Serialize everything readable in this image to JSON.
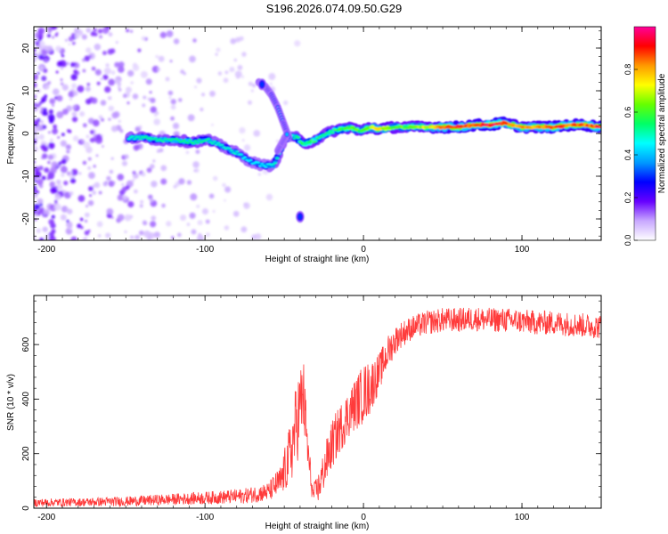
{
  "title": "S196.2026.074.09.50.G29",
  "chart_data": [
    {
      "type": "heatmap",
      "xlabel": "Height of straight line (km)",
      "ylabel": "Frequency (Hz)",
      "xlim": [
        -208,
        150
      ],
      "ylim": [
        -25,
        25
      ],
      "xticks": [
        -200,
        -100,
        0,
        100
      ],
      "yticks": [
        -20,
        -10,
        0,
        10,
        20
      ],
      "xtick_labels": [
        "-200",
        "-100",
        "0",
        "100"
      ],
      "ytick_labels": [
        "-20",
        "-10",
        "0",
        "10",
        "20"
      ],
      "colorbar": {
        "label": "Normalized spectral amplitude",
        "range": [
          0,
          1
        ],
        "ticks": [
          0.0,
          0.2,
          0.4,
          0.6,
          0.8
        ],
        "tick_labels": [
          "0.0",
          "0.2",
          "0.4",
          "0.6",
          "0.8"
        ],
        "colors": [
          "#ffffff",
          "#c8a8ff",
          "#6600ff",
          "#0000ff",
          "#0099ff",
          "#00ffff",
          "#00ff66",
          "#66ff00",
          "#ffff00",
          "#ff9900",
          "#ff0000",
          "#ff0099"
        ]
      },
      "ridge": {
        "x": [
          -148,
          -138,
          -128,
          -118,
          -108,
          -98,
          -92,
          -86,
          -80,
          -74,
          -68,
          -62,
          -57,
          -54,
          -50,
          -46,
          -42,
          -38,
          -34,
          -30,
          -26,
          -20,
          -14,
          -8,
          -2,
          4,
          10,
          20,
          30,
          40,
          50,
          60,
          70,
          80,
          88,
          94,
          100,
          110,
          120,
          130,
          140,
          150
        ],
        "freq": [
          -1,
          -1,
          -1.5,
          -1.5,
          -2,
          -1.5,
          -2.5,
          -3.5,
          -4.5,
          -6,
          -7,
          -7.5,
          -7.5,
          -5.5,
          -1.5,
          -0.5,
          -1,
          -2.5,
          -2,
          -1.5,
          -0.5,
          0.5,
          1,
          1.5,
          0.5,
          1.5,
          1,
          1.5,
          1.5,
          1.5,
          1.5,
          1.5,
          2,
          2,
          2.5,
          2,
          1.5,
          1.5,
          1.5,
          2,
          2,
          1.5
        ],
        "amp": [
          0.35,
          0.4,
          0.4,
          0.42,
          0.45,
          0.4,
          0.35,
          0.35,
          0.35,
          0.3,
          0.3,
          0.3,
          0.35,
          0.4,
          0.35,
          0.3,
          0.45,
          0.55,
          0.55,
          0.5,
          0.45,
          0.5,
          0.55,
          0.6,
          0.6,
          0.65,
          0.75,
          0.6,
          0.6,
          0.7,
          0.85,
          0.9,
          0.85,
          0.95,
          0.9,
          0.8,
          0.8,
          0.8,
          0.9,
          0.85,
          0.85,
          0.9
        ]
      },
      "branches": [
        {
          "x": [
            -66,
            -62,
            -58,
            -54,
            -50,
            -47
          ],
          "freq": [
            12,
            11,
            9,
            6,
            2,
            -1
          ]
        },
        {
          "x": [
            -54,
            -51,
            -48
          ],
          "freq": [
            -4,
            -2,
            0
          ]
        }
      ],
      "spots": [
        {
          "x": -40,
          "freq": -19.5,
          "amp": 0.3
        },
        {
          "x": -64,
          "freq": 11.5,
          "amp": 0.35
        }
      ]
    },
    {
      "type": "line",
      "xlabel": "Height of straight line (km)",
      "ylabel": "SNR (10 * v/v)",
      "xlim": [
        -208,
        150
      ],
      "ylim": [
        0,
        780
      ],
      "xticks": [
        -200,
        -100,
        0,
        100
      ],
      "yticks": [
        0,
        200,
        400,
        600
      ],
      "xtick_labels": [
        "-200",
        "-100",
        "0",
        "100"
      ],
      "ytick_labels": [
        "0",
        "200",
        "400",
        "600"
      ],
      "color": "#ff3b3b",
      "envelope": {
        "x": [
          -208,
          -180,
          -150,
          -130,
          -110,
          -90,
          -75,
          -60,
          -52,
          -46,
          -42,
          -38,
          -35,
          -32,
          -28,
          -24,
          -20,
          -16,
          -12,
          -8,
          -4,
          0,
          4,
          10,
          16,
          22,
          30,
          40,
          50,
          60,
          70,
          80,
          90,
          100,
          110,
          120,
          130,
          140,
          150
        ],
        "mean": [
          20,
          22,
          25,
          30,
          35,
          40,
          45,
          60,
          100,
          200,
          320,
          420,
          200,
          50,
          80,
          160,
          230,
          280,
          320,
          360,
          390,
          420,
          440,
          500,
          580,
          630,
          660,
          680,
          690,
          690,
          695,
          690,
          690,
          685,
          680,
          680,
          675,
          670,
          665
        ],
        "noise": [
          15,
          15,
          18,
          20,
          22,
          25,
          28,
          35,
          60,
          120,
          160,
          150,
          80,
          30,
          60,
          80,
          90,
          90,
          90,
          90,
          100,
          110,
          100,
          70,
          60,
          50,
          45,
          45,
          45,
          45,
          45,
          45,
          45,
          45,
          45,
          45,
          45,
          45,
          45
        ]
      }
    }
  ]
}
